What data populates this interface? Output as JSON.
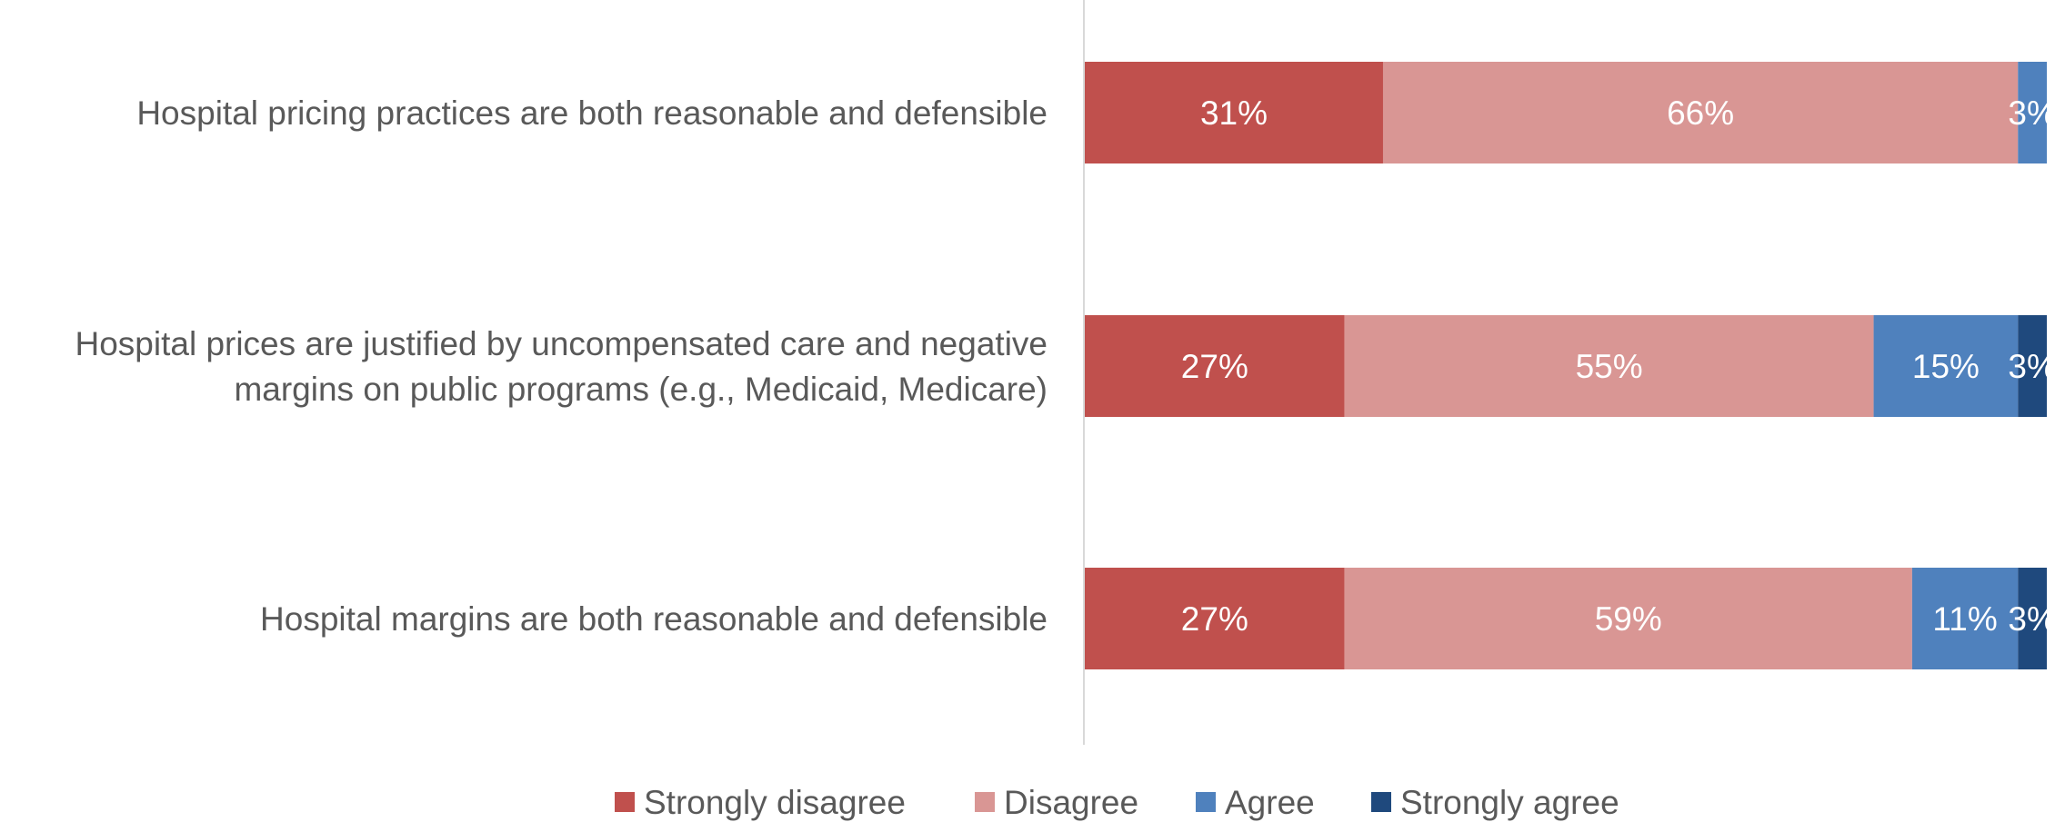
{
  "chart_data": {
    "type": "bar",
    "orientation": "horizontal",
    "stacked": true,
    "categories": [
      [
        "Hospital pricing practices are both reasonable and defensible"
      ],
      [
        "Hospital prices are justified by uncompensated care and negative",
        "margins on public programs (e.g., Medicaid, Medicare)"
      ],
      [
        "Hospital margins are both reasonable and defensible"
      ]
    ],
    "series": [
      {
        "name": "Strongly disagree",
        "color": "#C0504D",
        "values": [
          31,
          27,
          27
        ],
        "labels": [
          "31%",
          "27%",
          "27%"
        ]
      },
      {
        "name": "Disagree",
        "color": "#D99694",
        "values": [
          66,
          55,
          59
        ],
        "labels": [
          "66%",
          "55%",
          "59%"
        ]
      },
      {
        "name": "Agree",
        "color": "#4F81BD",
        "values": [
          3,
          15,
          11
        ],
        "labels": [
          "3%",
          "15%",
          "11%"
        ]
      },
      {
        "name": "Strongly agree",
        "color": "#1F497D",
        "values": [
          0,
          3,
          3
        ],
        "labels": [
          "",
          "3%",
          "3%"
        ]
      }
    ],
    "xlim": [
      0,
      100
    ],
    "grid": false,
    "legend_position": "bottom",
    "title": "",
    "xlabel": "",
    "ylabel": ""
  }
}
